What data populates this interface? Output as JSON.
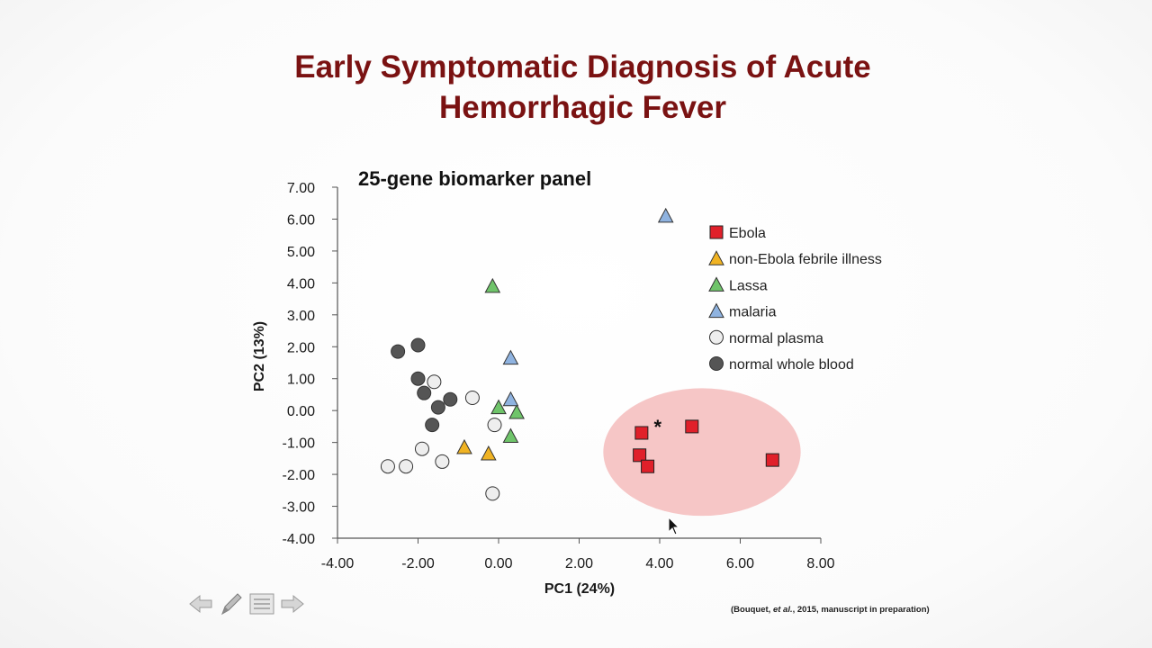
{
  "slide": {
    "title_line1": "Early Symptomatic Diagnosis of Acute",
    "title_line2": "Hemorrhagic Fever",
    "citation_pre": "(Bouquet, ",
    "citation_em": "et al.",
    "citation_post": ", 2015, manuscript in preparation)"
  },
  "nav": {
    "icons": [
      "arrow-left-icon",
      "pen-icon",
      "menu-icon",
      "arrow-right-icon"
    ]
  },
  "chart_data": {
    "type": "scatter",
    "title": "25-gene biomarker panel",
    "xlabel": "PC1 (24%)",
    "ylabel": "PC2 (13%)",
    "xlim": [
      -4.0,
      8.0
    ],
    "ylim": [
      -4.0,
      7.0
    ],
    "xticks": [
      "-4.00",
      "-2.00",
      "0.00",
      "2.00",
      "4.00",
      "6.00",
      "8.00"
    ],
    "yticks": [
      "7.00",
      "6.00",
      "5.00",
      "4.00",
      "3.00",
      "2.00",
      "1.00",
      "0.00",
      "-1.00",
      "-2.00",
      "-3.00",
      "-4.00"
    ],
    "grid": false,
    "legend_position": "top-right",
    "series": [
      {
        "name": "Ebola",
        "marker": "square",
        "color": "#e0202a",
        "points": [
          [
            3.55,
            -0.7
          ],
          [
            4.8,
            -0.5
          ],
          [
            3.5,
            -1.4
          ],
          [
            3.7,
            -1.75
          ],
          [
            6.8,
            -1.55
          ]
        ]
      },
      {
        "name": "non-Ebola febrile illness",
        "marker": "triangle",
        "color": "#f0b323",
        "points": [
          [
            -0.85,
            -1.15
          ],
          [
            -0.25,
            -1.35
          ]
        ]
      },
      {
        "name": "Lassa",
        "marker": "triangle",
        "color": "#6fc46a",
        "points": [
          [
            -0.15,
            3.9
          ],
          [
            0.0,
            0.1
          ],
          [
            0.45,
            -0.05
          ],
          [
            0.3,
            -0.8
          ]
        ]
      },
      {
        "name": "malaria",
        "marker": "triangle",
        "color": "#8fb3e0",
        "points": [
          [
            4.15,
            6.1
          ],
          [
            0.3,
            1.65
          ],
          [
            0.3,
            0.35
          ]
        ]
      },
      {
        "name": "normal plasma",
        "marker": "circle",
        "color": "#eeeeee",
        "points": [
          [
            -1.6,
            0.9
          ],
          [
            -0.65,
            0.4
          ],
          [
            -0.1,
            -0.45
          ],
          [
            -1.9,
            -1.2
          ],
          [
            -1.4,
            -1.6
          ],
          [
            -2.75,
            -1.75
          ],
          [
            -2.3,
            -1.75
          ],
          [
            -0.15,
            -2.6
          ]
        ]
      },
      {
        "name": "normal whole blood",
        "marker": "circle",
        "color": "#555555",
        "points": [
          [
            -2.5,
            1.85
          ],
          [
            -2.0,
            2.05
          ],
          [
            -2.0,
            1.0
          ],
          [
            -1.85,
            0.55
          ],
          [
            -1.5,
            0.1
          ],
          [
            -1.2,
            0.35
          ],
          [
            -1.65,
            -0.45
          ]
        ]
      }
    ],
    "annotations": [
      {
        "text": "*",
        "at": [
          3.95,
          -0.45
        ]
      }
    ],
    "highlight_region": {
      "shape": "ellipse",
      "center": [
        5.05,
        -1.3
      ],
      "radius_x": 2.45,
      "radius_y": 2.0,
      "color": "#f4b8b8"
    }
  }
}
